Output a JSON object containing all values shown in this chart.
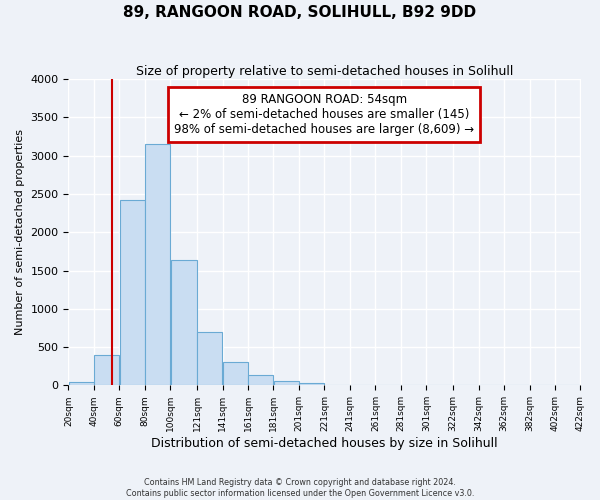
{
  "title": "89, RANGOON ROAD, SOLIHULL, B92 9DD",
  "subtitle": "Size of property relative to semi-detached houses in Solihull",
  "xlabel": "Distribution of semi-detached houses by size in Solihull",
  "ylabel": "Number of semi-detached properties",
  "bar_heights": [
    50,
    390,
    2420,
    3150,
    1640,
    700,
    300,
    140,
    60,
    30,
    0,
    0,
    0,
    0,
    0,
    0,
    0,
    0,
    0,
    0
  ],
  "bin_edges": [
    20,
    40,
    60,
    80,
    100,
    121,
    141,
    161,
    181,
    201,
    221,
    241,
    261,
    281,
    301,
    322,
    342,
    362,
    382,
    402,
    422
  ],
  "tick_labels": [
    "20sqm",
    "40sqm",
    "60sqm",
    "80sqm",
    "100sqm",
    "121sqm",
    "141sqm",
    "161sqm",
    "181sqm",
    "201sqm",
    "221sqm",
    "241sqm",
    "261sqm",
    "281sqm",
    "301sqm",
    "322sqm",
    "342sqm",
    "362sqm",
    "382sqm",
    "402sqm",
    "422sqm"
  ],
  "bar_color": "#c9ddf2",
  "bar_edge_color": "#6aaad4",
  "property_line_x": 54,
  "property_line_color": "#cc0000",
  "annotation_title": "89 RANGOON ROAD: 54sqm",
  "annotation_line1": "← 2% of semi-detached houses are smaller (145)",
  "annotation_line2": "98% of semi-detached houses are larger (8,609) →",
  "annotation_box_color": "#cc0000",
  "ylim": [
    0,
    4000
  ],
  "yticks": [
    0,
    500,
    1000,
    1500,
    2000,
    2500,
    3000,
    3500,
    4000
  ],
  "footer_line1": "Contains HM Land Registry data © Crown copyright and database right 2024.",
  "footer_line2": "Contains public sector information licensed under the Open Government Licence v3.0.",
  "background_color": "#eef2f8",
  "grid_color": "#ffffff"
}
